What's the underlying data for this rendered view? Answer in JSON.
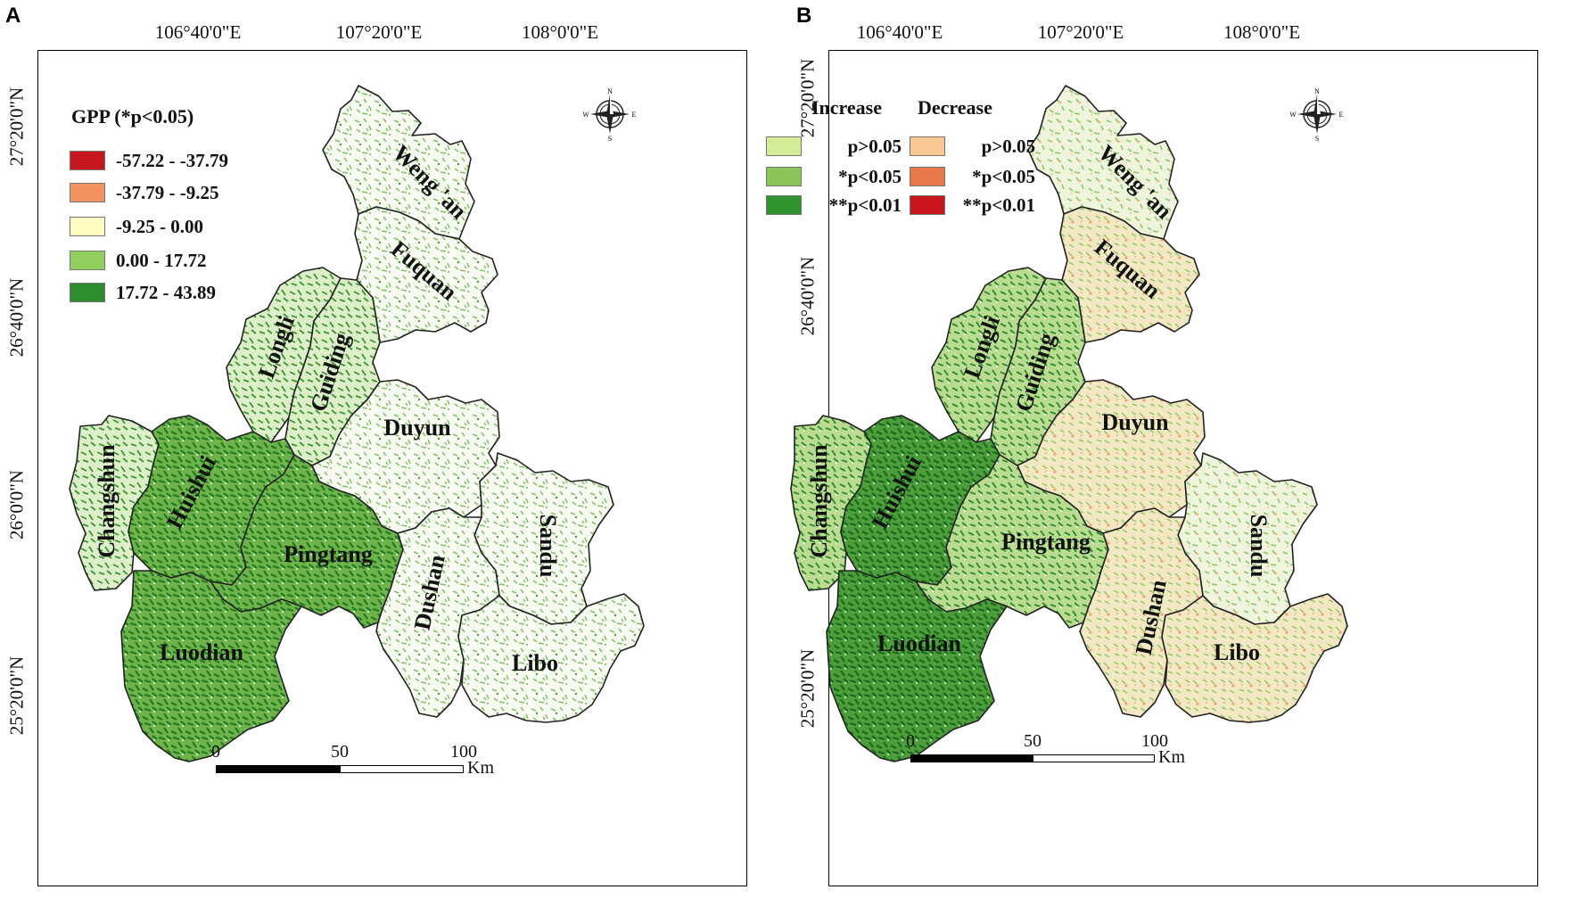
{
  "panels": [
    {
      "letter": "A",
      "legend_title": "GPP (*p<0.05)",
      "legend_items": [
        {
          "label": "-57.22 - -37.79",
          "color": "#c4161c"
        },
        {
          "label": "-37.79 - -9.25",
          "color": "#f29461"
        },
        {
          "label": "-9.25 - 0.00",
          "color": "#fefdc3"
        },
        {
          "label": "0.00 - 17.72",
          "color": "#91cf60"
        },
        {
          "label": "17.72 - 43.89",
          "color": "#2e8b2e"
        }
      ]
    },
    {
      "letter": "B",
      "legend_increase_title": "Increase",
      "legend_decrease_title": "Decrease",
      "increase_items": [
        {
          "label": "p>0.05",
          "color": "#d4ec9a"
        },
        {
          "label": "*p<0.05",
          "color": "#8cc65a"
        },
        {
          "label": "**p<0.01",
          "color": "#2f922f"
        }
      ],
      "decrease_items": [
        {
          "label": "p>0.05",
          "color": "#f8c793"
        },
        {
          "label": "*p<0.05",
          "color": "#e8774a"
        },
        {
          "label": "**p<0.01",
          "color": "#c8141c"
        }
      ]
    }
  ],
  "longitudes": [
    "106°40'0\"E",
    "107°20'0\"E",
    "108°0'0\"E"
  ],
  "latitudes": [
    "27°20'0\"N",
    "26°40'0\"N",
    "26°0'0\"N",
    "25°20'0\"N"
  ],
  "counties": [
    "Weng 'an",
    "Fuquan",
    "Longli",
    "Guiding",
    "Duyun",
    "Changshun",
    "Huishui",
    "Pingtang",
    "Sandu",
    "Dushan",
    "Luodian",
    "Libo"
  ],
  "scale": {
    "ticks": [
      "0",
      "50",
      "100"
    ],
    "unit": "Km"
  },
  "compass": {
    "n": "N",
    "s": "S",
    "e": "E",
    "w": "W",
    "icon": "compass-rose-icon"
  }
}
